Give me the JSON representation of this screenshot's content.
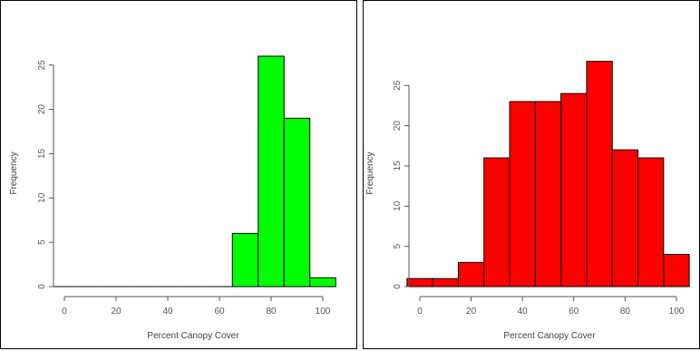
{
  "chart_data": [
    {
      "type": "bar",
      "title": "",
      "xlabel": "Percent Canopy Cover",
      "ylabel": "Frequency",
      "bin_edges": [
        -5,
        5,
        15,
        25,
        35,
        45,
        55,
        65,
        75,
        85,
        95,
        105
      ],
      "values": [
        0,
        0,
        0,
        0,
        0,
        0,
        0,
        6,
        26,
        19,
        1
      ],
      "xlim": [
        -5,
        105
      ],
      "ylim": [
        0,
        26
      ],
      "x_ticks": [
        0,
        20,
        40,
        60,
        80,
        100
      ],
      "y_ticks": [
        0,
        5,
        10,
        15,
        20,
        25
      ],
      "fill_color": "#00ff00",
      "edge_color": "#000000",
      "grid": false
    },
    {
      "type": "bar",
      "title": "",
      "xlabel": "Percent Canopy Cover",
      "ylabel": "Frequency",
      "bin_edges": [
        -5,
        5,
        15,
        25,
        35,
        45,
        55,
        65,
        75,
        85,
        95,
        105
      ],
      "values": [
        1,
        1,
        3,
        16,
        23,
        23,
        24,
        28,
        17,
        16,
        4
      ],
      "xlim": [
        -5,
        105
      ],
      "ylim": [
        0,
        28
      ],
      "x_ticks": [
        0,
        20,
        40,
        60,
        80,
        100
      ],
      "y_ticks": [
        0,
        5,
        10,
        15,
        20,
        25
      ],
      "fill_color": "#ff0000",
      "edge_color": "#000000",
      "grid": false
    }
  ]
}
